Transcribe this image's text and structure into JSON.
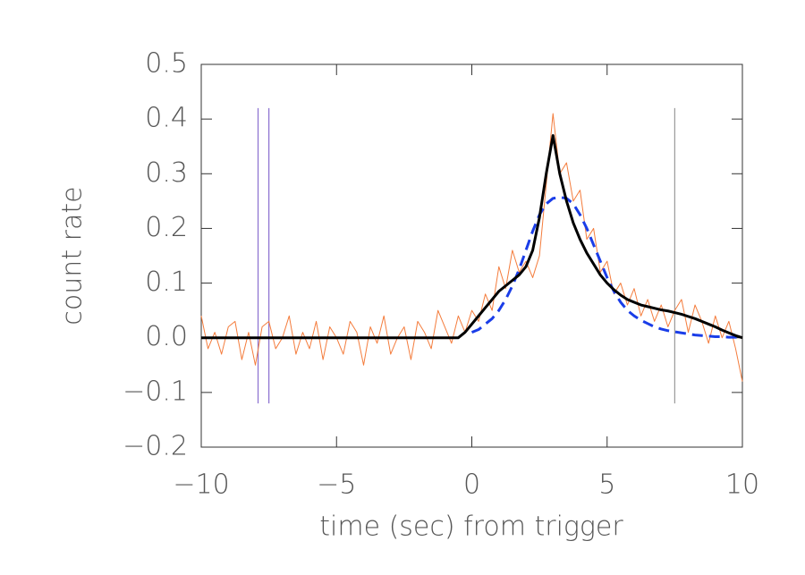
{
  "chart_data": {
    "type": "line",
    "xlabel": "time (sec) from trigger",
    "ylabel": "count rate",
    "xlim": [
      -10,
      10
    ],
    "ylim": [
      -0.2,
      0.5
    ],
    "xticks": [
      {
        "value": -10,
        "label": "−10"
      },
      {
        "value": -5,
        "label": "−5"
      },
      0,
      5,
      10
    ],
    "yticks": [
      {
        "value": -0.2,
        "label": "−0.2"
      },
      {
        "value": -0.1,
        "label": "−0.1"
      },
      {
        "value": 0,
        "label": "0.0"
      },
      0.1,
      0.2,
      0.3,
      0.4,
      0.5
    ],
    "grid": false,
    "x": [
      -10,
      -9.75,
      -9.5,
      -9.25,
      -9,
      -8.75,
      -8.5,
      -8.25,
      -8,
      -7.75,
      -7.5,
      -7.25,
      -7,
      -6.75,
      -6.5,
      -6.25,
      -6,
      -5.75,
      -5.5,
      -5.25,
      -5,
      -4.75,
      -4.5,
      -4.25,
      -4,
      -3.75,
      -3.5,
      -3.25,
      -3,
      -2.75,
      -2.5,
      -2.25,
      -2,
      -1.75,
      -1.5,
      -1.25,
      -1,
      -0.75,
      -0.5,
      -0.25,
      0,
      0.25,
      0.5,
      0.75,
      1,
      1.25,
      1.5,
      1.75,
      2,
      2.25,
      2.5,
      2.75,
      3,
      3.25,
      3.5,
      3.75,
      4,
      4.25,
      4.5,
      4.75,
      5,
      5.25,
      5.5,
      5.75,
      6,
      6.25,
      6.5,
      6.75,
      7,
      7.25,
      7.5,
      7.75,
      8,
      8.25,
      8.5,
      8.75,
      9,
      9.25,
      9.5,
      9.75,
      10
    ],
    "series": [
      {
        "color": "#f47c3c",
        "width": 1,
        "dashed": false,
        "values": [
          0.04,
          -0.02,
          0.01,
          -0.03,
          0.02,
          0.03,
          -0.04,
          0.01,
          -0.05,
          0.02,
          0.03,
          -0.02,
          0.0,
          0.04,
          -0.03,
          0.01,
          -0.02,
          0.03,
          -0.04,
          0.02,
          0.0,
          -0.03,
          0.03,
          0.01,
          -0.05,
          0.02,
          -0.01,
          0.04,
          -0.03,
          0.0,
          0.02,
          -0.04,
          0.03,
          0.01,
          -0.02,
          0.05,
          0.02,
          -0.01,
          0.04,
          0.01,
          0.05,
          0.03,
          0.08,
          0.05,
          0.13,
          0.09,
          0.16,
          0.12,
          0.14,
          0.11,
          0.15,
          0.28,
          0.41,
          0.3,
          0.32,
          0.25,
          0.27,
          0.18,
          0.2,
          0.12,
          0.14,
          0.08,
          0.1,
          0.06,
          0.09,
          0.04,
          0.07,
          0.03,
          0.06,
          0.02,
          0.05,
          0.07,
          0.01,
          0.06,
          0.03,
          -0.01,
          0.04,
          0.0,
          0.03,
          -0.02,
          -0.08
        ]
      },
      {
        "color": "#1a3de8",
        "width": 3,
        "dashed": true,
        "values": [
          null,
          null,
          null,
          null,
          null,
          null,
          null,
          null,
          null,
          null,
          null,
          null,
          null,
          null,
          null,
          null,
          null,
          null,
          null,
          null,
          null,
          null,
          null,
          null,
          null,
          null,
          null,
          null,
          null,
          null,
          null,
          null,
          null,
          null,
          null,
          null,
          null,
          null,
          null,
          null,
          0.01,
          0.015,
          0.025,
          0.035,
          0.05,
          0.07,
          0.095,
          0.125,
          0.16,
          0.195,
          0.225,
          0.245,
          0.255,
          0.257,
          0.255,
          0.245,
          0.225,
          0.2,
          0.17,
          0.14,
          0.11,
          0.085,
          0.065,
          0.05,
          0.04,
          0.032,
          0.026,
          0.02,
          0.016,
          0.013,
          0.011,
          0.009,
          0.007,
          0.005,
          0.004,
          0.003,
          0.002,
          0.002,
          0.001,
          0.001,
          0.001
        ]
      },
      {
        "color": "#000000",
        "width": 3,
        "dashed": false,
        "values": [
          0,
          0,
          0,
          0,
          0,
          0,
          0,
          0,
          0,
          0,
          0,
          0,
          0,
          0,
          0,
          0,
          0,
          0,
          0,
          0,
          0,
          0,
          0,
          0,
          0,
          0,
          0,
          0,
          0,
          0,
          0,
          0,
          0,
          0,
          0,
          0,
          0,
          0,
          0,
          0.01,
          0.025,
          0.04,
          0.055,
          0.07,
          0.085,
          0.095,
          0.105,
          0.115,
          0.13,
          0.16,
          0.22,
          0.3,
          0.37,
          0.3,
          0.25,
          0.21,
          0.18,
          0.155,
          0.135,
          0.115,
          0.1,
          0.088,
          0.078,
          0.07,
          0.065,
          0.06,
          0.057,
          0.054,
          0.051,
          0.049,
          0.046,
          0.043,
          0.039,
          0.035,
          0.03,
          0.025,
          0.02,
          0.014,
          0.009,
          0.004,
          0
        ]
      }
    ],
    "vlines": [
      {
        "x": -7.9,
        "ymin": -0.12,
        "ymax": 0.42,
        "color": "#8a6fd0"
      },
      {
        "x": -7.5,
        "ymin": -0.12,
        "ymax": 0.42,
        "color": "#8a6fd0"
      },
      {
        "x": 7.5,
        "ymin": -0.12,
        "ymax": 0.42,
        "color": "#999999"
      }
    ]
  }
}
